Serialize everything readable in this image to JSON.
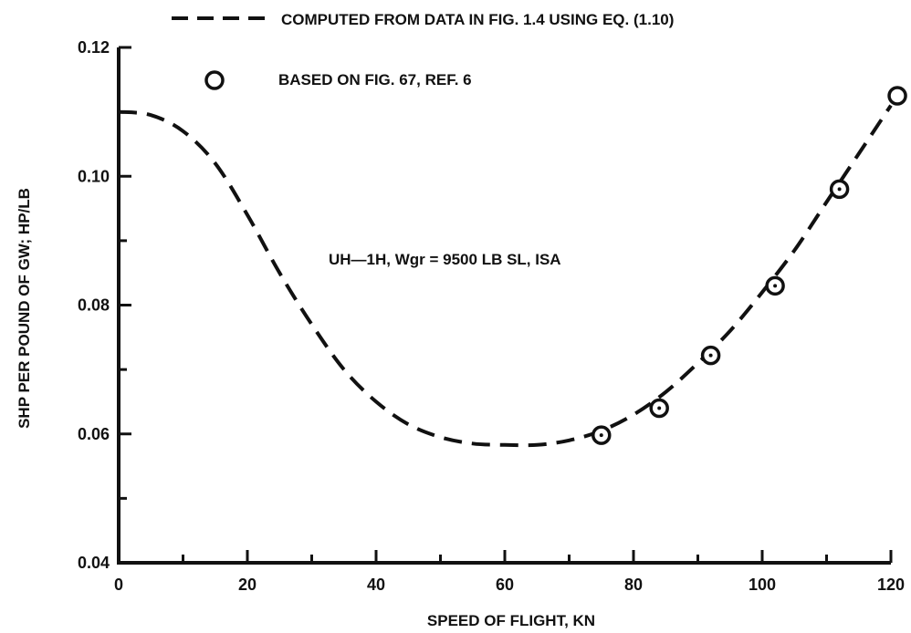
{
  "chart_data": {
    "type": "line",
    "xlabel": "SPEED OF FLIGHT,  KN",
    "ylabel": "SHP PER POUND OF GW; HP/LB",
    "xlim": [
      0,
      120
    ],
    "ylim": [
      0.04,
      0.12
    ],
    "x_ticks": [
      "0",
      "20",
      "40",
      "60",
      "80",
      "100",
      "120"
    ],
    "y_ticks": [
      "0.04",
      "0.06",
      "0.08",
      "0.10",
      "0.12"
    ],
    "x_tick_values": [
      0,
      20,
      40,
      60,
      80,
      100,
      120
    ],
    "y_tick_values": [
      0.04,
      0.06,
      0.08,
      0.1,
      0.12
    ],
    "grid": false,
    "legend_placement": "top",
    "legend": [
      {
        "symbol": "dashed-line",
        "label": "COMPUTED FROM DATA IN FIG. 1.4 USING EQ. (1.10)"
      },
      {
        "symbol": "circle",
        "label": "BASED ON FIG. 67, REF. 6"
      }
    ],
    "annotation": "UH—1H,  Wgr = 9500 LB   SL, ISA",
    "series": [
      {
        "style": "dashed",
        "x": [
          0,
          5,
          10,
          15,
          20,
          25,
          30,
          35,
          40,
          45,
          50,
          55,
          60,
          65,
          70,
          75,
          80,
          85,
          90,
          95,
          100,
          105,
          110,
          115,
          120
        ],
        "y": [
          0.11,
          0.1095,
          0.107,
          0.102,
          0.094,
          0.085,
          0.077,
          0.07,
          0.065,
          0.0615,
          0.0595,
          0.0585,
          0.0583,
          0.0583,
          0.059,
          0.0605,
          0.063,
          0.0665,
          0.071,
          0.076,
          0.082,
          0.0885,
          0.096,
          0.1035,
          0.111
        ]
      },
      {
        "style": "markers",
        "x": [
          75,
          84,
          92,
          102,
          112,
          121
        ],
        "y": [
          0.0598,
          0.064,
          0.0722,
          0.083,
          0.098,
          0.1125
        ]
      }
    ]
  }
}
